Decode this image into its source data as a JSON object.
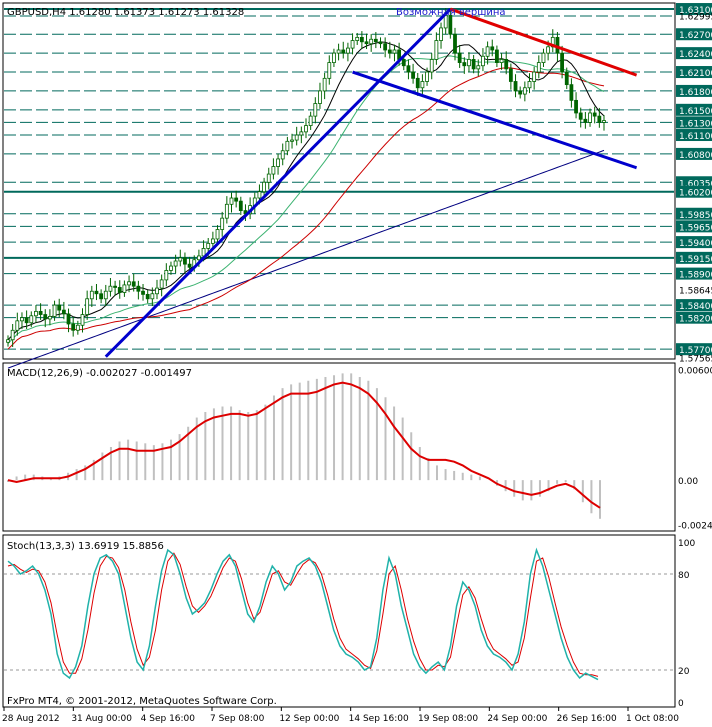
{
  "header": {
    "symbol_info": "GBPUSD,H4  1.61280 1.61373 1.61273 1.61328",
    "annotation": "Возможная вершина"
  },
  "footer": {
    "copyright": "FxPro MT4, © 2001-2012, MetaQuotes Software Corp."
  },
  "colors": {
    "candle": "#006400",
    "support_levels": "#00695c",
    "trend_blue": "#0000cd",
    "trend_red": "#e00000",
    "ma_black": "#000000",
    "ma_teal": "#3cb371",
    "ma_red": "#cc0000",
    "ma_blue": "#000080",
    "macd_hist": "#c0c0c0",
    "macd_signal": "#dd0000",
    "stoch_main": "#20b2aa",
    "stoch_signal": "#dd0000",
    "price_tag_bg": "#00695c",
    "price_tag_text": "#ffffff"
  },
  "chart_data": [
    {
      "type": "candlestick",
      "panel": "price",
      "title": "GBPUSD,H4",
      "ylim": [
        1.5756,
        1.6318
      ],
      "price_labels": [
        "1.63100",
        "1.62995",
        "1.62700",
        "1.62400",
        "1.62100",
        "1.61800",
        "1.61500",
        "1.61300",
        "1.61100",
        "1.60800",
        "1.60350",
        "1.60200",
        "1.59850",
        "1.59650",
        "1.59400",
        "1.59150",
        "1.58900",
        "1.58645",
        "1.58400",
        "1.58200",
        "1.57700",
        "1.57565"
      ],
      "highlighted_levels": [
        "1.63100",
        "1.62700",
        "1.62400",
        "1.62100",
        "1.61800",
        "1.61500",
        "1.61300",
        "1.61100",
        "1.60800",
        "1.60350",
        "1.60200",
        "1.59850",
        "1.59650",
        "1.59400",
        "1.59150",
        "1.58900",
        "1.58400",
        "1.58200",
        "1.57700"
      ],
      "horizontal_levels": [
        1.631,
        1.6299,
        1.627,
        1.624,
        1.621,
        1.618,
        1.615,
        1.613,
        1.611,
        1.608,
        1.6035,
        1.602,
        1.5985,
        1.5965,
        1.594,
        1.5915,
        1.589,
        1.584,
        1.582,
        1.577
      ],
      "bold_levels": [
        1.631,
        1.602,
        1.5915
      ],
      "x_labels": [
        "28 Aug 2012",
        "31 Aug 00:00",
        "4 Sep 16:00",
        "7 Sep 08:00",
        "12 Sep 00:00",
        "14 Sep 16:00",
        "19 Sep 08:00",
        "24 Sep 00:00",
        "26 Sep 16:00",
        "1 Oct 08:00"
      ],
      "close_series": [
        1.5785,
        1.58,
        1.5815,
        1.582,
        1.5812,
        1.5823,
        1.583,
        1.5825,
        1.5818,
        1.5822,
        1.584,
        1.5832,
        1.5826,
        1.581,
        1.58,
        1.5808,
        1.5825,
        1.585,
        1.5862,
        1.5858,
        1.585,
        1.5862,
        1.587,
        1.5868,
        1.586,
        1.5872,
        1.5877,
        1.587,
        1.5862,
        1.5857,
        1.585,
        1.5858,
        1.5867,
        1.588,
        1.5895,
        1.5902,
        1.591,
        1.5915,
        1.5905,
        1.59,
        1.5912,
        1.5918,
        1.593,
        1.5938,
        1.5945,
        1.596,
        1.5978,
        1.6,
        1.601,
        1.6005,
        1.599,
        1.5985,
        1.5998,
        1.601,
        1.602,
        1.6035,
        1.6048,
        1.606,
        1.6072,
        1.6085,
        1.61,
        1.6102,
        1.611,
        1.6115,
        1.6125,
        1.614,
        1.616,
        1.618,
        1.62,
        1.6225,
        1.624,
        1.6245,
        1.624,
        1.6248,
        1.626,
        1.6265,
        1.6258,
        1.6255,
        1.6262,
        1.6258,
        1.6255,
        1.6245,
        1.624,
        1.6245,
        1.623,
        1.622,
        1.621,
        1.62,
        1.6185,
        1.6195,
        1.621,
        1.623,
        1.626,
        1.628,
        1.63,
        1.627,
        1.624,
        1.6225,
        1.622,
        1.623,
        1.6215,
        1.622,
        1.6235,
        1.625,
        1.6245,
        1.6225,
        1.623,
        1.6215,
        1.6195,
        1.618,
        1.6175,
        1.6185,
        1.6195,
        1.621,
        1.6225,
        1.624,
        1.625,
        1.6265,
        1.624,
        1.621,
        1.619,
        1.6165,
        1.6145,
        1.6135,
        1.613,
        1.6145,
        1.614,
        1.613,
        1.6133
      ]
    },
    {
      "type": "line",
      "panel": "macd",
      "title": "MACD(12,26,9) -0.002027 -0.001497",
      "ylim": [
        -0.0026,
        0.0062
      ],
      "tick_labels": [
        "0.00600",
        "0.00",
        "-0.00241"
      ],
      "series": [
        {
          "role": "histogram",
          "values": [
            -0.0001,
            0.0002,
            0.0003,
            0.0003,
            0.0002,
            0.0001,
            0.0002,
            0.0004,
            0.0006,
            0.0008,
            0.0011,
            0.0015,
            0.0018,
            0.0021,
            0.0022,
            0.0021,
            0.002,
            0.0019,
            0.002,
            0.0022,
            0.0025,
            0.0029,
            0.0034,
            0.0037,
            0.0039,
            0.004,
            0.004,
            0.0038,
            0.0037,
            0.0038,
            0.0041,
            0.0046,
            0.005,
            0.0052,
            0.0053,
            0.0054,
            0.0055,
            0.0056,
            0.0057,
            0.0058,
            0.0058,
            0.0056,
            0.0054,
            0.005,
            0.0045,
            0.004,
            0.0034,
            0.0026,
            0.0018,
            0.0012,
            0.0008,
            0.0006,
            0.0005,
            0.0004,
            0.0003,
            0.0002,
            0.0,
            -0.0003,
            -0.0006,
            -0.0009,
            -0.0011,
            -0.0011,
            -0.0009,
            -0.0006,
            -0.0002,
            -0.0001,
            -0.0005,
            -0.0012,
            -0.0018,
            -0.0021
          ]
        },
        {
          "role": "signal",
          "values": [
            0.0,
            -0.0001,
            0.0,
            0.0001,
            0.0001,
            0.0001,
            0.0001,
            0.0002,
            0.0004,
            0.0006,
            0.0009,
            0.0012,
            0.0015,
            0.0017,
            0.0017,
            0.0016,
            0.0016,
            0.0016,
            0.0017,
            0.0018,
            0.0021,
            0.0025,
            0.0029,
            0.0032,
            0.0034,
            0.0035,
            0.0036,
            0.0036,
            0.0035,
            0.0036,
            0.0039,
            0.0042,
            0.0045,
            0.0047,
            0.0047,
            0.0047,
            0.0048,
            0.005,
            0.0052,
            0.0053,
            0.0052,
            0.005,
            0.0047,
            0.0042,
            0.0036,
            0.0029,
            0.0023,
            0.0017,
            0.0013,
            0.0011,
            0.0011,
            0.0011,
            0.001,
            0.0008,
            0.0005,
            0.0003,
            0.0001,
            -0.0002,
            -0.0004,
            -0.0006,
            -0.0007,
            -0.0008,
            -0.0007,
            -0.0005,
            -0.0003,
            -0.0002,
            -0.0004,
            -0.0008,
            -0.0012,
            -0.0015
          ]
        }
      ]
    },
    {
      "type": "line",
      "panel": "stochastic",
      "title": "Stoch(13,3,3) 13.6919 15.8856",
      "ylim": [
        0,
        100
      ],
      "tick_labels": [
        "100",
        "80",
        "20",
        "0"
      ],
      "levels": [
        80,
        20
      ],
      "series": [
        {
          "role": "main",
          "values": [
            88,
            85,
            80,
            82,
            85,
            80,
            70,
            55,
            30,
            18,
            15,
            22,
            35,
            60,
            80,
            90,
            92,
            88,
            80,
            60,
            40,
            25,
            20,
            35,
            60,
            82,
            95,
            92,
            80,
            65,
            55,
            58,
            62,
            70,
            80,
            88,
            92,
            85,
            70,
            55,
            50,
            60,
            75,
            85,
            80,
            70,
            75,
            85,
            88,
            90,
            85,
            75,
            60,
            45,
            35,
            30,
            28,
            25,
            20,
            22,
            40,
            70,
            90,
            80,
            60,
            45,
            30,
            22,
            18,
            22,
            25,
            20,
            35,
            60,
            75,
            70,
            60,
            45,
            35,
            30,
            28,
            25,
            20,
            30,
            50,
            80,
            95,
            85,
            70,
            55,
            40,
            28,
            20,
            15,
            18,
            16,
            14
          ]
        },
        {
          "role": "signal",
          "values": [
            85,
            86,
            83,
            81,
            83,
            82,
            75,
            62,
            42,
            25,
            18,
            18,
            27,
            45,
            68,
            85,
            91,
            90,
            84,
            70,
            50,
            33,
            23,
            28,
            45,
            70,
            88,
            93,
            86,
            72,
            60,
            56,
            60,
            66,
            75,
            84,
            90,
            88,
            77,
            62,
            52,
            56,
            68,
            80,
            82,
            75,
            73,
            80,
            86,
            89,
            87,
            80,
            67,
            52,
            40,
            33,
            30,
            27,
            23,
            21,
            32,
            55,
            80,
            85,
            70,
            52,
            38,
            27,
            20,
            20,
            23,
            22,
            28,
            48,
            67,
            72,
            65,
            52,
            40,
            33,
            30,
            27,
            23,
            25,
            40,
            65,
            88,
            90,
            78,
            62,
            47,
            35,
            25,
            18,
            17,
            17,
            16
          ]
        }
      ]
    }
  ]
}
